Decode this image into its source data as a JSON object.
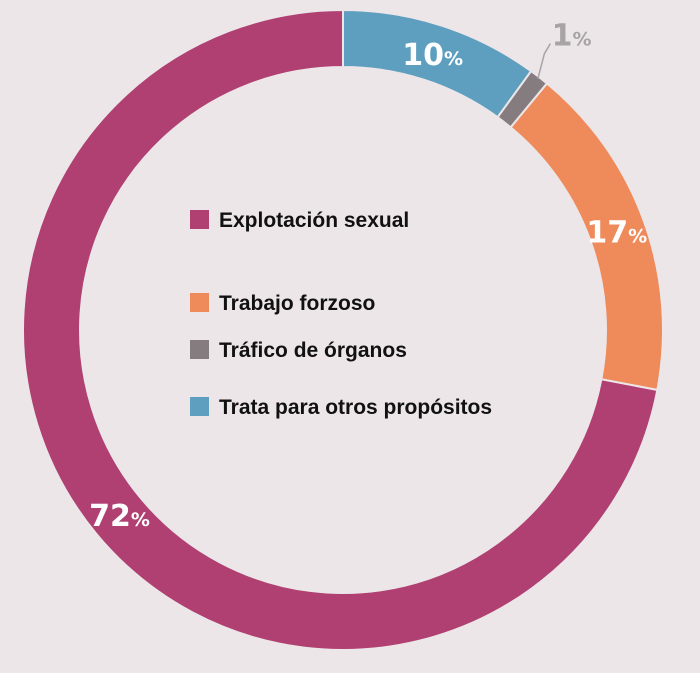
{
  "chart_data": {
    "type": "pie",
    "variant": "donut",
    "title": "",
    "slices": [
      {
        "label": "Explotación sexual",
        "value": 72,
        "color": "#b03f72",
        "display": "72"
      },
      {
        "label": "Trabajo forzoso",
        "value": 17,
        "color": "#ef8a5a",
        "display": "17"
      },
      {
        "label": "Tráfico de órganos",
        "value": 1,
        "color": "#857c80",
        "display": "1"
      },
      {
        "label": "Trata para otros propósitos",
        "value": 10,
        "color": "#5e9fc0",
        "display": "10"
      }
    ],
    "unit_symbol": "%",
    "legend_position": "center",
    "legend": [
      {
        "label": "Explotación sexual",
        "color": "#b03f72"
      },
      {
        "label": "Trabajo forzoso",
        "color": "#ef8a5a"
      },
      {
        "label": "Tráfico de órganos",
        "color": "#857c80"
      },
      {
        "label": "Trata para otros propósitos",
        "color": "#5e9fc0"
      }
    ]
  }
}
